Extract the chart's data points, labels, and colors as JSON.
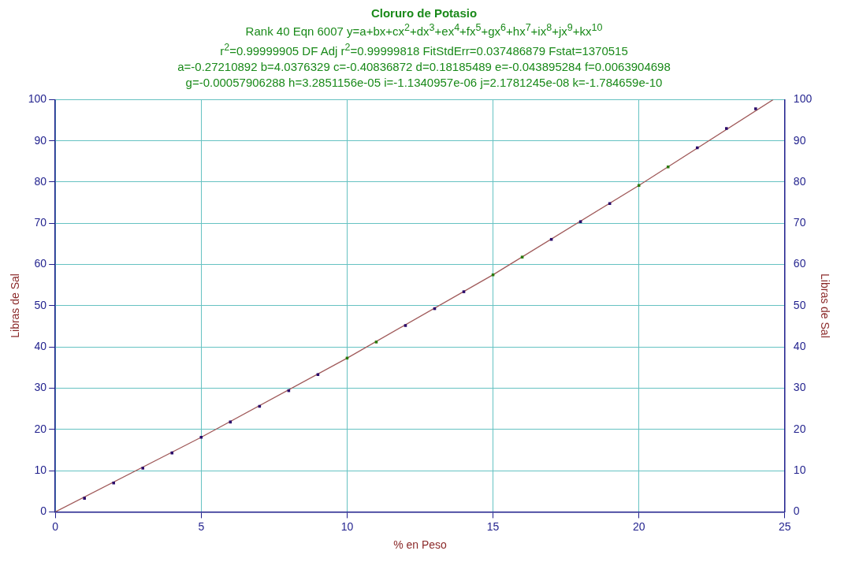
{
  "chart_data": {
    "type": "scatter",
    "title": "Cloruro de Potasio",
    "subtitle": "Rank 40  Eqn 6007  y=a+bx+cx$^{2}$+dx$^{3}$+ex$^{4}$+fx$^{5}$+gx$^{6}$+hx$^{7}$+ix$^{8}$+jx$^{9}$+kx$^{10}$\nr$^{2}$=0.99999905  DF Adj r$^{2}$=0.99999818  FitStdErr=0.037486879  Fstat=1370515\na=-0.27210892 b=4.0376329 c=-0.40836872 d=0.18185489 e=-0.043895284 f=0.0063904698\ng=-0.00057906288 h=3.2851156e-05 i=-1.1340957e-06 j=2.1781245e-08 k=-1.784659e-10",
    "xlabel": "% en Peso",
    "ylabel": "Libras de Sal",
    "y2label": "Libras de Sal",
    "xlim": [
      0,
      25
    ],
    "xticks": [
      0,
      5,
      10,
      15,
      20,
      25
    ],
    "ylim": [
      0,
      100
    ],
    "yticks": [
      0,
      10,
      20,
      30,
      40,
      50,
      60,
      70,
      80,
      90,
      100
    ],
    "y2lim": [
      0,
      100
    ],
    "y2ticks": [
      0,
      10,
      20,
      30,
      40,
      50,
      60,
      70,
      80,
      90,
      100
    ],
    "grid": true,
    "legend": false,
    "marker": "square",
    "series": [
      {
        "type": "line",
        "color": "#a05a5a",
        "x": [
          0,
          5,
          10,
          15,
          20,
          24.6
        ],
        "values": [
          0,
          18.1,
          37.3,
          57.5,
          79.2,
          100
        ],
        "marker": "none"
      },
      {
        "x": [
          1,
          2,
          3,
          4,
          5,
          6,
          7,
          8,
          9,
          10,
          11,
          12,
          13,
          14,
          15,
          16,
          17,
          18,
          19,
          20,
          21,
          22,
          23,
          24
        ],
        "values": [
          3.3,
          7.0,
          10.6,
          14.3,
          18.1,
          21.8,
          25.6,
          29.4,
          33.3,
          37.3,
          41.2,
          45.2,
          49.3,
          53.4,
          57.5,
          61.8,
          66.1,
          70.4,
          74.8,
          79.2,
          83.7,
          88.3,
          93.0,
          97.8
        ],
        "colors": [
          "#2a0a6a",
          "#2a0a6a",
          "#2a0a6a",
          "#2a0a6a",
          "#2a0a6a",
          "#2a0a6a",
          "#2a0a6a",
          "#2a0a6a",
          "#2a0a6a",
          "#2a7a0a",
          "#2a7a0a",
          "#2a0a6a",
          "#2a0a6a",
          "#2a0a6a",
          "#2a7a0a",
          "#2a7a0a",
          "#2a0a6a",
          "#2a0a6a",
          "#2a0a6a",
          "#2a7a0a",
          "#2a7a0a",
          "#2a0a6a",
          "#2a0a6a",
          "#2a0a6a"
        ]
      }
    ]
  }
}
